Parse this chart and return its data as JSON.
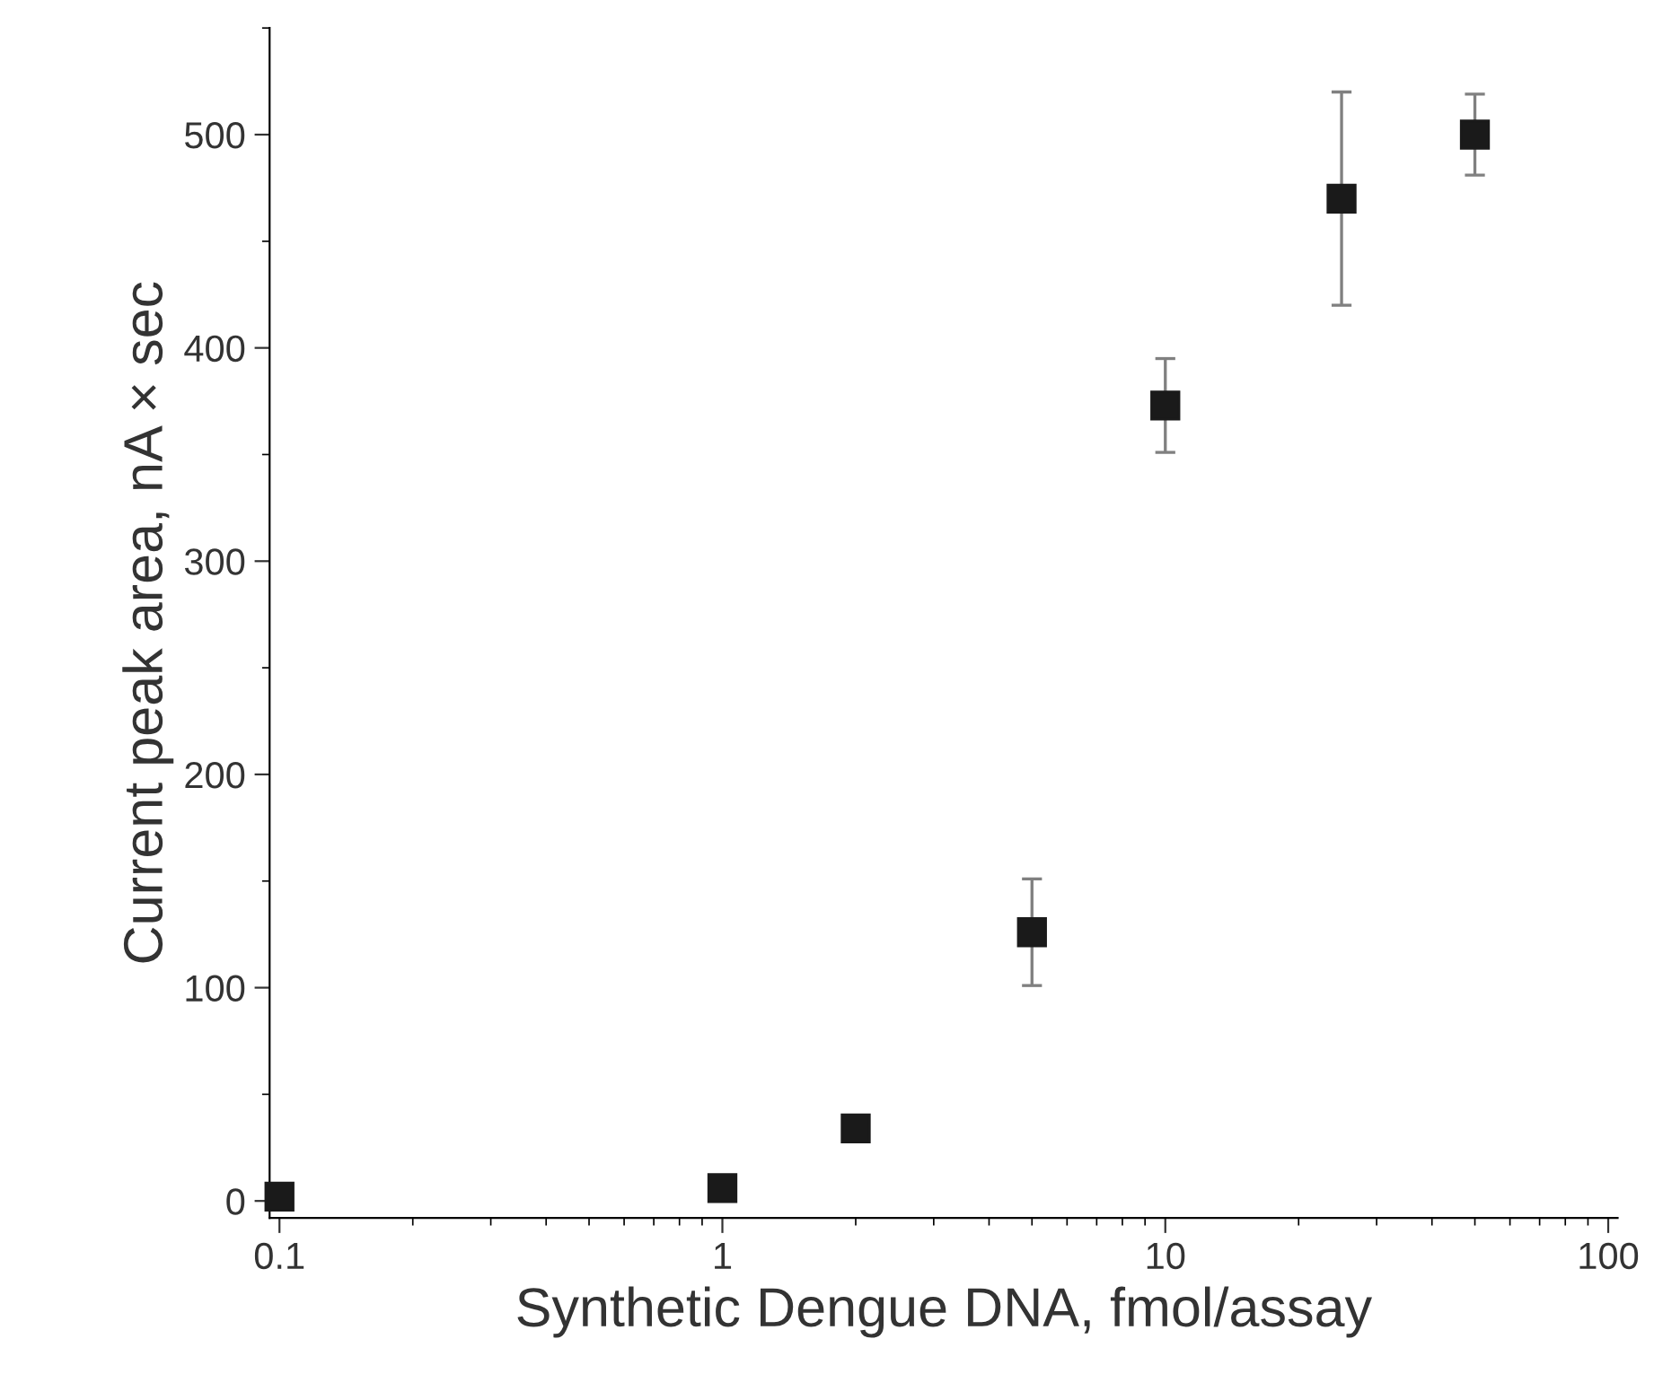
{
  "chart_data": {
    "type": "scatter",
    "xlabel": "Synthetic Dengue DNA, fmol/assay",
    "ylabel": "Current peak area, nA × sec",
    "x": [
      0.1,
      1,
      2,
      5,
      10,
      25,
      50
    ],
    "values": [
      2,
      6,
      34,
      126,
      373,
      470,
      500
    ],
    "errors": [
      null,
      null,
      null,
      25,
      22,
      50,
      19
    ],
    "color": "#1a1a1a",
    "marker": "square",
    "log": "x",
    "grid": false,
    "xlim": [
      0.095,
      105
    ],
    "xticks": [
      0.1,
      1,
      10,
      100
    ],
    "ylim": [
      -8,
      550
    ],
    "yticks": [
      0,
      100,
      200,
      300,
      400,
      500
    ]
  }
}
